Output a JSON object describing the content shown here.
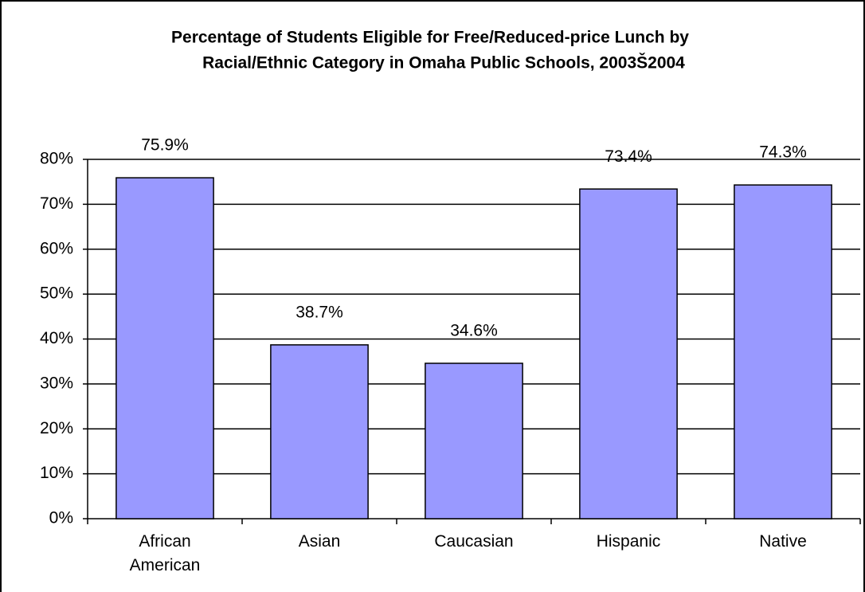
{
  "chart_data": {
    "type": "bar",
    "title": [
      "Percentage of Students Eligible for Free/Reduced-price Lunch by",
      "Racial/Ethnic Category in Omaha Public Schools, 2003Š2004"
    ],
    "categories": [
      "African American",
      "Asian",
      "Caucasian",
      "Hispanic",
      "Native"
    ],
    "values": [
      75.9,
      38.7,
      34.6,
      73.4,
      74.3
    ],
    "value_labels": [
      "75.9%",
      "38.7%",
      "34.6%",
      "73.4%",
      "74.3%"
    ],
    "color": "#9999ff",
    "ylim": [
      0,
      80
    ],
    "yticks": [
      {
        "value": 0,
        "label": "0%"
      },
      {
        "value": 10,
        "label": "10%"
      },
      {
        "value": 20,
        "label": "20%"
      },
      {
        "value": 30,
        "label": "30%"
      },
      {
        "value": 40,
        "label": "40%"
      },
      {
        "value": 50,
        "label": "50%"
      },
      {
        "value": 60,
        "label": "60%"
      },
      {
        "value": 70,
        "label": "70%"
      },
      {
        "value": 80,
        "label": "80%"
      }
    ],
    "grid": true
  }
}
